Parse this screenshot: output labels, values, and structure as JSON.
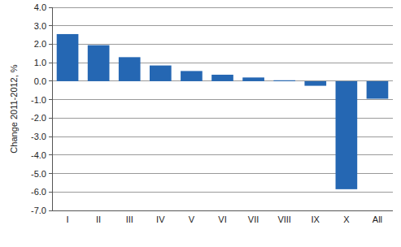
{
  "chart_data": {
    "type": "bar",
    "y_label": "Change 2011-2012,  %",
    "categories": [
      "I",
      "II",
      "III",
      "IV",
      "V",
      "VI",
      "VII",
      "VIII",
      "IX",
      "X",
      "All"
    ],
    "values": [
      2.55,
      1.95,
      1.3,
      0.85,
      0.55,
      0.35,
      0.2,
      0.05,
      -0.25,
      -5.85,
      -0.95
    ],
    "color": "#2567b3",
    "ylim": [
      -7,
      4
    ],
    "yticks": [
      {
        "value": -7,
        "label": "-7.0"
      },
      {
        "value": -6,
        "label": "-6.0"
      },
      {
        "value": -5,
        "label": "-5.0"
      },
      {
        "value": -4,
        "label": "-4.0"
      },
      {
        "value": -3,
        "label": "-3.0"
      },
      {
        "value": -2,
        "label": "-2.0"
      },
      {
        "value": -1,
        "label": "-1.0"
      },
      {
        "value": 0,
        "label": "0.0"
      },
      {
        "value": 1,
        "label": "1.0"
      },
      {
        "value": 2,
        "label": "2.0"
      },
      {
        "value": 3,
        "label": "3.0"
      },
      {
        "value": 4,
        "label": "4.0"
      }
    ],
    "grid": true
  }
}
